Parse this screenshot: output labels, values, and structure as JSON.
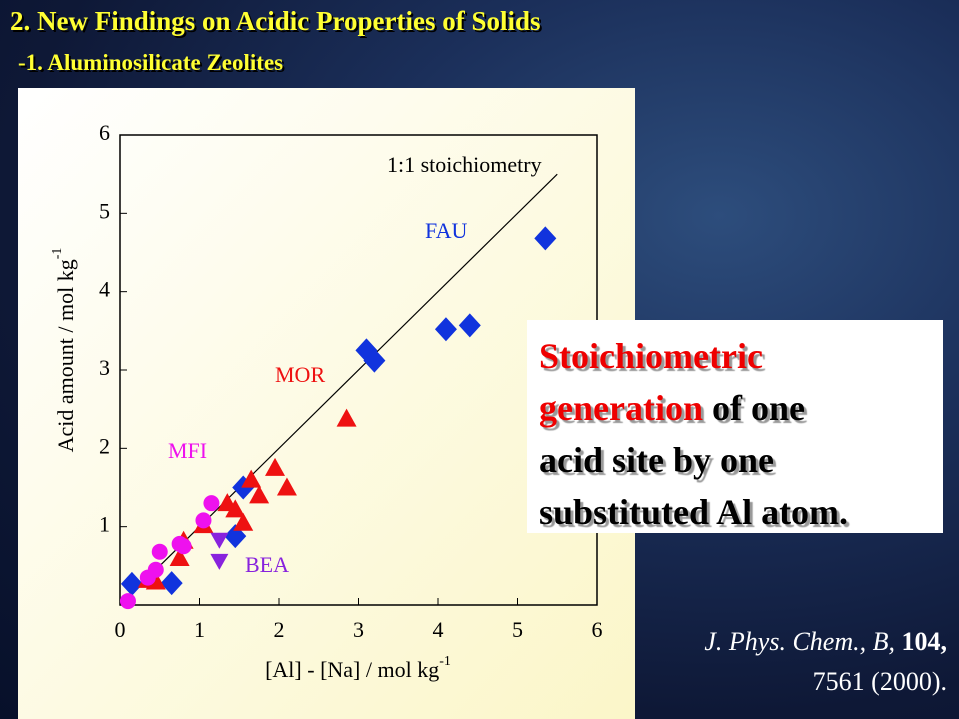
{
  "slide": {
    "title": "2. New Findings on Acidic Properties of Solids",
    "subtitle": "-1. Aluminosilicate Zeolites",
    "callout": {
      "emphasis": [
        "Stoichiometric",
        "generation"
      ],
      "plain": [
        "of one",
        "acid site by one",
        "substituted Al atom."
      ]
    },
    "citation": {
      "journal": "J. Phys. Chem., B,",
      "volume": "104,",
      "pages": "7561 (2000)."
    }
  },
  "chart_data": {
    "type": "scatter",
    "x_label": "[Al] - [Na] / mol kg",
    "x_label_sup": "-1",
    "y_label": "Acid amount / mol kg",
    "y_label_sup": "-1",
    "xlim": [
      0,
      6
    ],
    "ylim": [
      0,
      6
    ],
    "xticks": [
      0,
      1,
      2,
      3,
      4,
      5,
      6
    ],
    "yticks": [
      1,
      2,
      3,
      4,
      5,
      6
    ],
    "reference_line": {
      "label": "1:1 stoichiometry",
      "x": [
        0,
        5.5
      ],
      "y": [
        0,
        5.5
      ],
      "color": "#000000"
    },
    "series": [
      {
        "name": "FAU",
        "color": "#1133dd",
        "marker": "diamond",
        "x": [
          0.15,
          0.65,
          1.45,
          1.55,
          3.1,
          3.2,
          4.1,
          4.4,
          5.35
        ],
        "values": [
          0.27,
          0.28,
          0.88,
          1.5,
          3.25,
          3.12,
          3.52,
          3.57,
          4.68
        ]
      },
      {
        "name": "MOR",
        "color": "#ee1111",
        "marker": "triangle",
        "x": [
          0.35,
          0.45,
          0.75,
          0.8,
          1.05,
          1.35,
          1.45,
          1.55,
          1.65,
          1.75,
          1.95,
          2.1,
          2.85
        ],
        "values": [
          0.32,
          0.3,
          0.6,
          0.82,
          1.02,
          1.3,
          1.22,
          1.05,
          1.6,
          1.4,
          1.75,
          1.5,
          2.38
        ]
      },
      {
        "name": "MFI",
        "color": "#ee11ee",
        "marker": "circle",
        "x": [
          0.1,
          0.35,
          0.45,
          0.5,
          0.75,
          0.8,
          1.05,
          1.15
        ],
        "values": [
          0.05,
          0.35,
          0.45,
          0.68,
          0.78,
          0.75,
          1.08,
          1.3
        ]
      },
      {
        "name": "BEA",
        "color": "#8822dd",
        "marker": "triangle-down",
        "x": [
          1.25,
          1.25
        ],
        "values": [
          0.82,
          0.55
        ]
      }
    ]
  }
}
